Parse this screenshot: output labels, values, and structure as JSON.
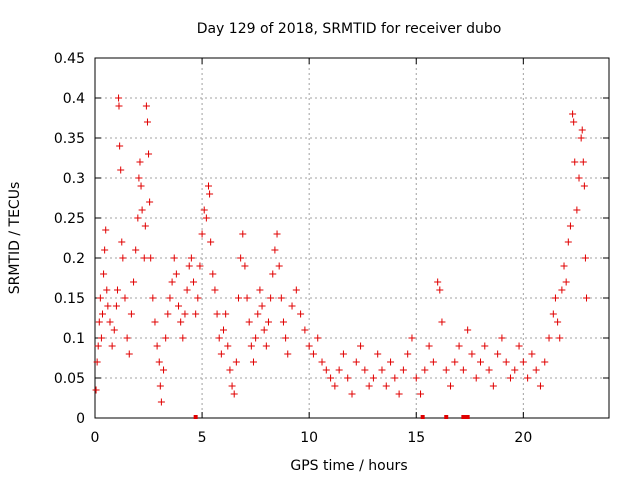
{
  "chart_data": {
    "type": "scatter",
    "title": "Day 129 of 2018, SRMTID for receiver dubo",
    "xlabel": "GPS time / hours",
    "ylabel": "SRMTID / TECUs",
    "xlim": [
      0,
      24
    ],
    "ylim": [
      0,
      0.45
    ],
    "xticks": [
      "0",
      "5",
      "10",
      "15",
      "20"
    ],
    "xtick_values": [
      0,
      5,
      10,
      15,
      20
    ],
    "yticks": [
      "0",
      "0.05",
      "0.1",
      "0.15",
      "0.2",
      "0.25",
      "0.3",
      "0.35",
      "0.4",
      "0.45"
    ],
    "ytick_values": [
      0,
      0.05,
      0.1,
      0.15,
      0.2,
      0.25,
      0.3,
      0.35,
      0.4,
      0.45
    ],
    "grid": true,
    "marker": "+",
    "color": "#e00000",
    "series": [
      {
        "name": "SRMTID",
        "points": [
          [
            0.05,
            0.035
          ],
          [
            0.1,
            0.07
          ],
          [
            0.15,
            0.09
          ],
          [
            0.2,
            0.12
          ],
          [
            0.25,
            0.15
          ],
          [
            0.3,
            0.1
          ],
          [
            0.35,
            0.13
          ],
          [
            0.4,
            0.18
          ],
          [
            0.45,
            0.21
          ],
          [
            0.5,
            0.235
          ],
          [
            0.55,
            0.16
          ],
          [
            0.6,
            0.14
          ],
          [
            0.7,
            0.12
          ],
          [
            0.8,
            0.09
          ],
          [
            0.9,
            0.11
          ],
          [
            1.0,
            0.14
          ],
          [
            1.05,
            0.16
          ],
          [
            1.1,
            0.4
          ],
          [
            1.12,
            0.39
          ],
          [
            1.15,
            0.34
          ],
          [
            1.2,
            0.31
          ],
          [
            1.25,
            0.22
          ],
          [
            1.3,
            0.2
          ],
          [
            1.4,
            0.15
          ],
          [
            1.5,
            0.1
          ],
          [
            1.6,
            0.08
          ],
          [
            1.7,
            0.13
          ],
          [
            1.8,
            0.17
          ],
          [
            1.9,
            0.21
          ],
          [
            2.0,
            0.25
          ],
          [
            2.05,
            0.3
          ],
          [
            2.1,
            0.32
          ],
          [
            2.15,
            0.29
          ],
          [
            2.2,
            0.26
          ],
          [
            2.3,
            0.2
          ],
          [
            2.35,
            0.24
          ],
          [
            2.4,
            0.39
          ],
          [
            2.45,
            0.37
          ],
          [
            2.5,
            0.33
          ],
          [
            2.55,
            0.27
          ],
          [
            2.6,
            0.2
          ],
          [
            2.7,
            0.15
          ],
          [
            2.8,
            0.12
          ],
          [
            2.9,
            0.09
          ],
          [
            3.0,
            0.07
          ],
          [
            3.05,
            0.04
          ],
          [
            3.1,
            0.02
          ],
          [
            3.2,
            0.06
          ],
          [
            3.3,
            0.1
          ],
          [
            3.4,
            0.13
          ],
          [
            3.5,
            0.15
          ],
          [
            3.6,
            0.17
          ],
          [
            3.7,
            0.2
          ],
          [
            3.8,
            0.18
          ],
          [
            3.9,
            0.14
          ],
          [
            4.0,
            0.12
          ],
          [
            4.1,
            0.1
          ],
          [
            4.2,
            0.13
          ],
          [
            4.3,
            0.16
          ],
          [
            4.4,
            0.19
          ],
          [
            4.5,
            0.2
          ],
          [
            4.6,
            0.17
          ],
          [
            4.7,
            0.13
          ],
          [
            4.8,
            0.15
          ],
          [
            4.9,
            0.19
          ],
          [
            5.0,
            0.23
          ],
          [
            5.1,
            0.26
          ],
          [
            5.2,
            0.25
          ],
          [
            5.3,
            0.29
          ],
          [
            5.35,
            0.28
          ],
          [
            5.4,
            0.22
          ],
          [
            5.5,
            0.18
          ],
          [
            5.6,
            0.16
          ],
          [
            5.7,
            0.13
          ],
          [
            5.8,
            0.1
          ],
          [
            5.9,
            0.08
          ],
          [
            6.0,
            0.11
          ],
          [
            6.1,
            0.13
          ],
          [
            6.2,
            0.09
          ],
          [
            6.3,
            0.06
          ],
          [
            6.4,
            0.04
          ],
          [
            6.5,
            0.03
          ],
          [
            6.6,
            0.07
          ],
          [
            6.7,
            0.15
          ],
          [
            6.8,
            0.2
          ],
          [
            6.9,
            0.23
          ],
          [
            7.0,
            0.19
          ],
          [
            7.1,
            0.15
          ],
          [
            7.2,
            0.12
          ],
          [
            7.3,
            0.09
          ],
          [
            7.4,
            0.07
          ],
          [
            7.5,
            0.1
          ],
          [
            7.6,
            0.13
          ],
          [
            7.7,
            0.16
          ],
          [
            7.8,
            0.14
          ],
          [
            7.9,
            0.11
          ],
          [
            8.0,
            0.09
          ],
          [
            8.1,
            0.12
          ],
          [
            8.2,
            0.15
          ],
          [
            8.3,
            0.18
          ],
          [
            8.4,
            0.21
          ],
          [
            8.5,
            0.23
          ],
          [
            8.6,
            0.19
          ],
          [
            8.7,
            0.15
          ],
          [
            8.8,
            0.12
          ],
          [
            8.9,
            0.1
          ],
          [
            9.0,
            0.08
          ],
          [
            9.2,
            0.14
          ],
          [
            9.4,
            0.16
          ],
          [
            9.6,
            0.13
          ],
          [
            9.8,
            0.11
          ],
          [
            10.0,
            0.09
          ],
          [
            10.2,
            0.08
          ],
          [
            10.4,
            0.1
          ],
          [
            10.6,
            0.07
          ],
          [
            10.8,
            0.06
          ],
          [
            11.0,
            0.05
          ],
          [
            11.2,
            0.04
          ],
          [
            11.4,
            0.06
          ],
          [
            11.6,
            0.08
          ],
          [
            11.8,
            0.05
          ],
          [
            12.0,
            0.03
          ],
          [
            12.2,
            0.07
          ],
          [
            12.4,
            0.09
          ],
          [
            12.6,
            0.06
          ],
          [
            12.8,
            0.04
          ],
          [
            13.0,
            0.05
          ],
          [
            13.2,
            0.08
          ],
          [
            13.4,
            0.06
          ],
          [
            13.6,
            0.04
          ],
          [
            13.8,
            0.07
          ],
          [
            14.0,
            0.05
          ],
          [
            14.2,
            0.03
          ],
          [
            14.4,
            0.06
          ],
          [
            14.6,
            0.08
          ],
          [
            14.8,
            0.1
          ],
          [
            15.0,
            0.05
          ],
          [
            15.2,
            0.03
          ],
          [
            15.4,
            0.06
          ],
          [
            15.6,
            0.09
          ],
          [
            15.8,
            0.07
          ],
          [
            16.0,
            0.17
          ],
          [
            16.1,
            0.16
          ],
          [
            16.2,
            0.12
          ],
          [
            16.4,
            0.06
          ],
          [
            16.6,
            0.04
          ],
          [
            16.8,
            0.07
          ],
          [
            17.0,
            0.09
          ],
          [
            17.2,
            0.06
          ],
          [
            17.4,
            0.11
          ],
          [
            17.6,
            0.08
          ],
          [
            17.8,
            0.05
          ],
          [
            18.0,
            0.07
          ],
          [
            18.2,
            0.09
          ],
          [
            18.4,
            0.06
          ],
          [
            18.6,
            0.04
          ],
          [
            18.8,
            0.08
          ],
          [
            19.0,
            0.1
          ],
          [
            19.2,
            0.07
          ],
          [
            19.4,
            0.05
          ],
          [
            19.6,
            0.06
          ],
          [
            19.8,
            0.09
          ],
          [
            20.0,
            0.07
          ],
          [
            20.2,
            0.05
          ],
          [
            20.4,
            0.08
          ],
          [
            20.6,
            0.06
          ],
          [
            20.8,
            0.04
          ],
          [
            21.0,
            0.07
          ],
          [
            21.2,
            0.1
          ],
          [
            21.4,
            0.13
          ],
          [
            21.5,
            0.15
          ],
          [
            21.6,
            0.12
          ],
          [
            21.7,
            0.1
          ],
          [
            21.8,
            0.16
          ],
          [
            21.9,
            0.19
          ],
          [
            22.0,
            0.17
          ],
          [
            22.1,
            0.22
          ],
          [
            22.2,
            0.24
          ],
          [
            22.3,
            0.38
          ],
          [
            22.35,
            0.37
          ],
          [
            22.4,
            0.32
          ],
          [
            22.5,
            0.26
          ],
          [
            22.6,
            0.3
          ],
          [
            22.7,
            0.35
          ],
          [
            22.75,
            0.36
          ],
          [
            22.8,
            0.32
          ],
          [
            22.85,
            0.29
          ],
          [
            22.9,
            0.2
          ],
          [
            22.95,
            0.15
          ]
        ]
      }
    ],
    "zero_markers": [
      4.7,
      15.3,
      16.4,
      17.2,
      17.3,
      17.4
    ]
  }
}
